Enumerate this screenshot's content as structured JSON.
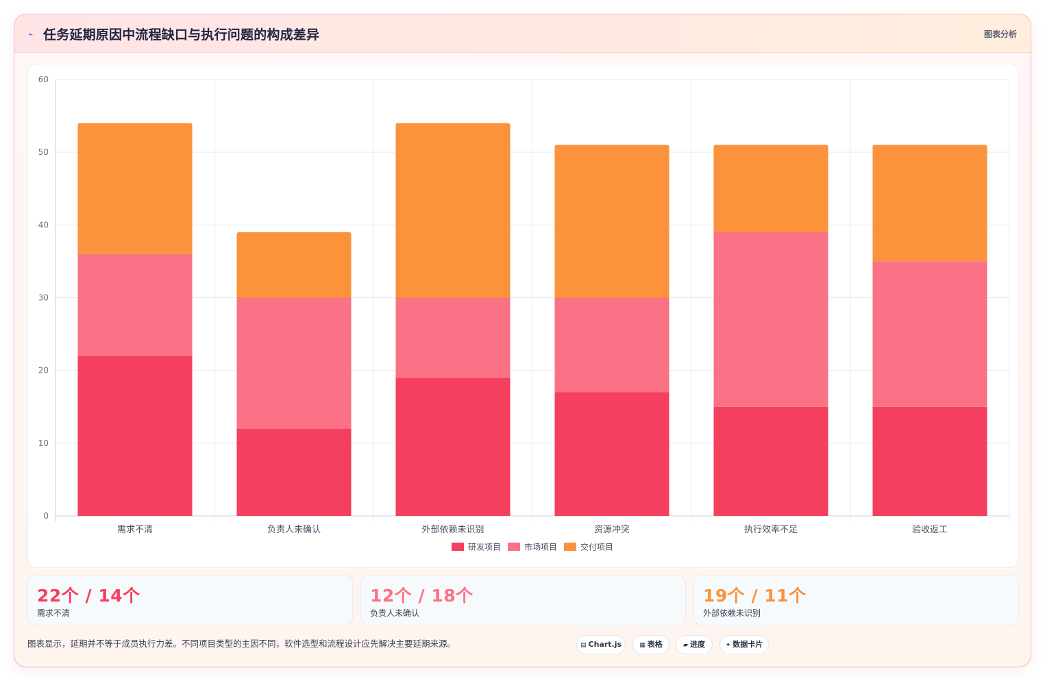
{
  "header": {
    "icon": "chart-line-icon",
    "title": "任务延期原因中流程缺口与执行问题的构成差异",
    "tag": "图表分析"
  },
  "chart_data": {
    "type": "bar",
    "stacked": true,
    "categories": [
      "需求不清",
      "负责人未确认",
      "外部依赖未识别",
      "资源冲突",
      "执行效率不足",
      "验收返工"
    ],
    "series": [
      {
        "name": "研发项目",
        "color": "#f43f5e",
        "values": [
          22,
          12,
          19,
          17,
          15,
          15
        ]
      },
      {
        "name": "市场项目",
        "color": "#fb7185",
        "values": [
          14,
          18,
          11,
          13,
          24,
          20
        ]
      },
      {
        "name": "交付项目",
        "color": "#fb923c",
        "values": [
          18,
          9,
          24,
          21,
          12,
          16
        ]
      }
    ],
    "ylim": [
      0,
      60
    ],
    "yticks": [
      0,
      10,
      20,
      30,
      40,
      50,
      60
    ],
    "grid": true,
    "legend": "bottom"
  },
  "stats": [
    {
      "value": "22个 / 14个",
      "label": "需求不清",
      "color": "#f43f5e"
    },
    {
      "value": "12个 / 18个",
      "label": "负责人未确认",
      "color": "#fb7185"
    },
    {
      "value": "19个 / 11个",
      "label": "外部依赖未识别",
      "color": "#fb923c"
    }
  ],
  "footer": {
    "note": "图表显示，延期并不等于成员执行力差。不同项目类型的主因不同，软件选型和流程设计应先解决主要延期来源。"
  },
  "chips": [
    {
      "icon": "▤",
      "label": "Chart.js"
    },
    {
      "icon": "▦",
      "label": "表格"
    },
    {
      "icon": "▰",
      "label": "进度"
    },
    {
      "icon": "✦",
      "label": "数据卡片"
    }
  ]
}
